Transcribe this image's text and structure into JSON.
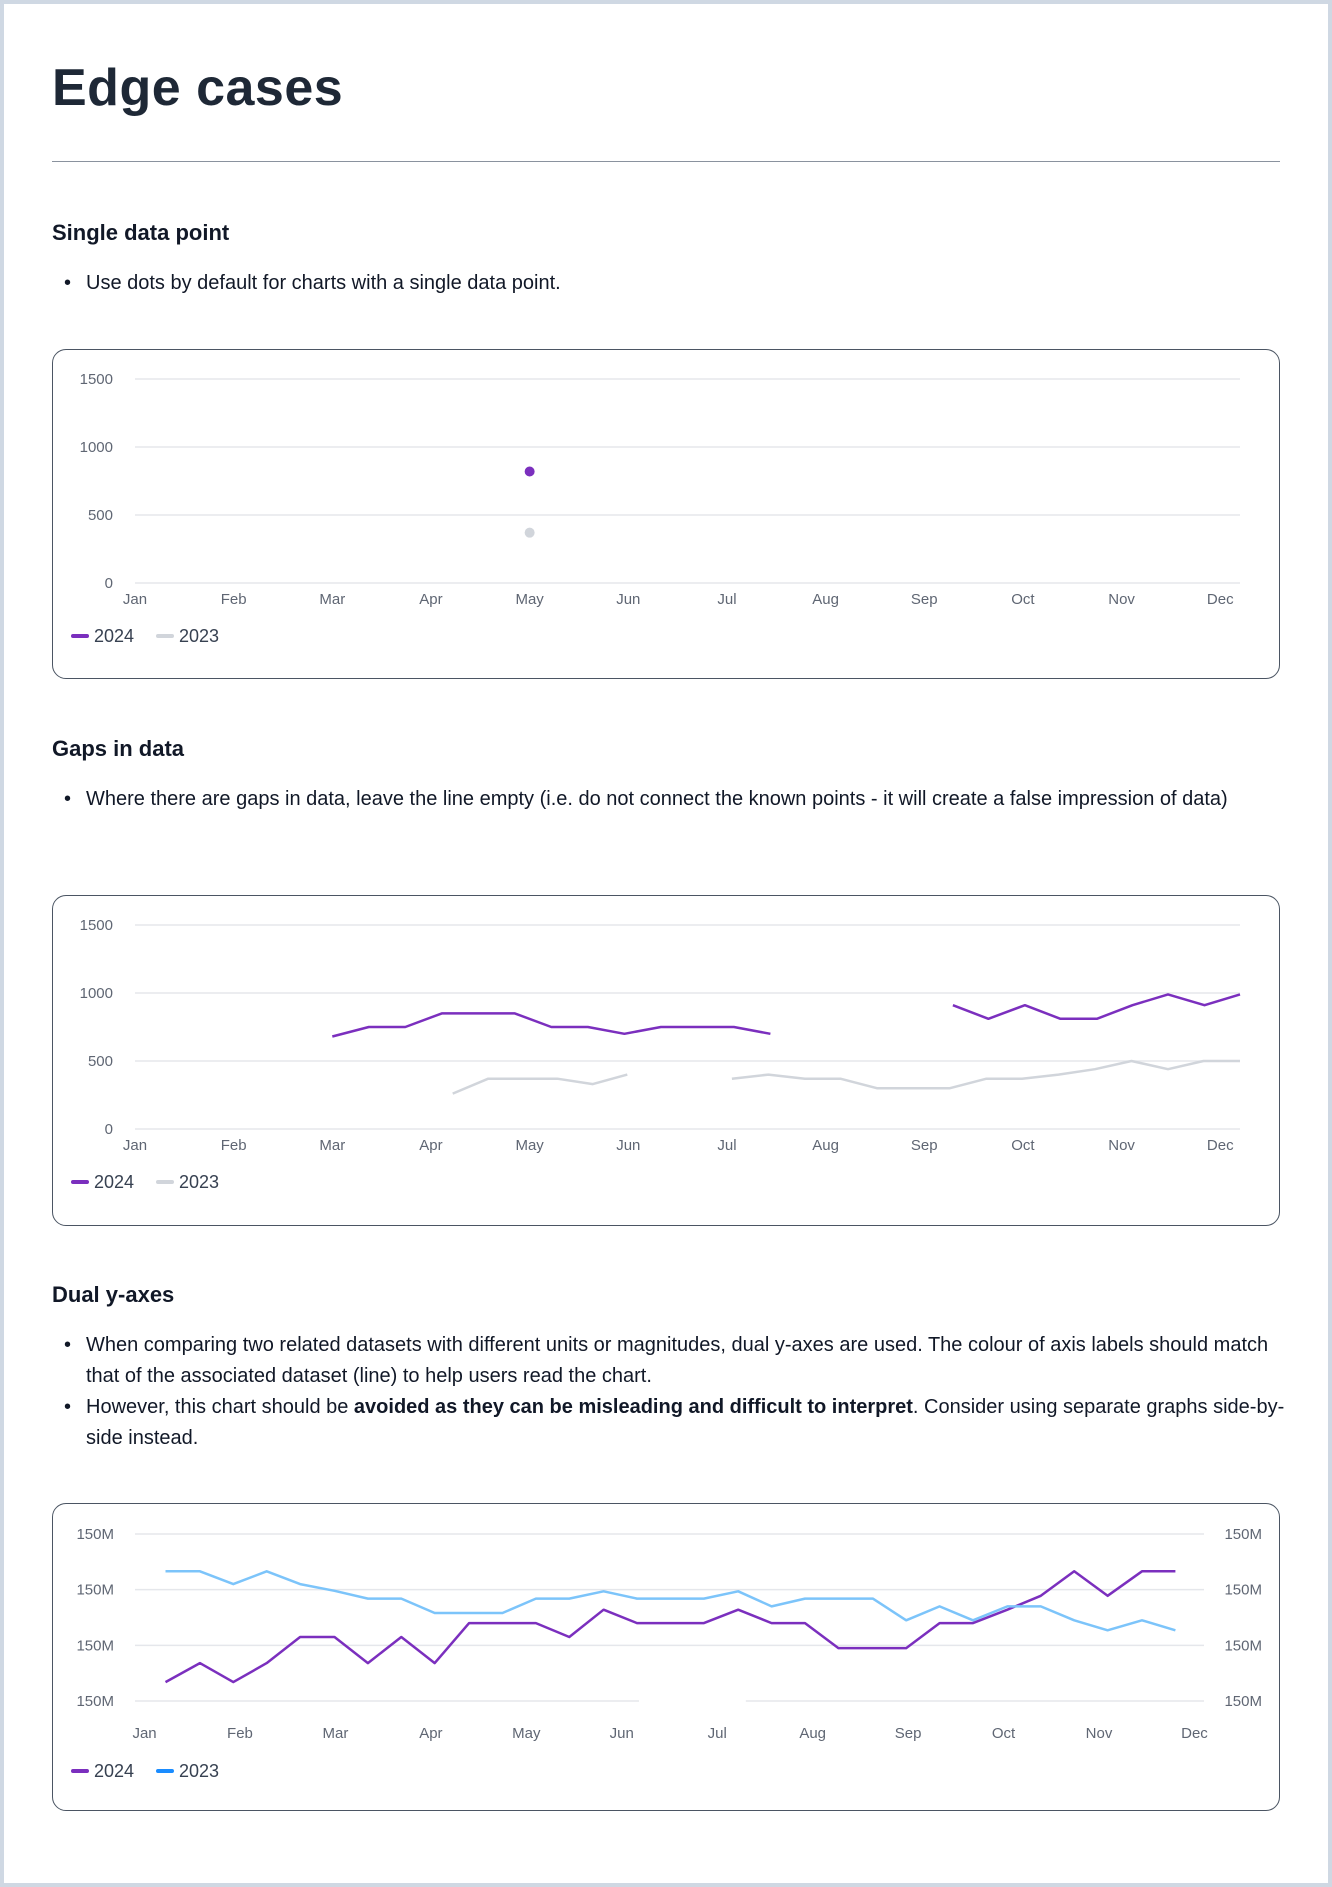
{
  "title": "Edge cases",
  "sections": {
    "single": {
      "heading": "Single data point",
      "bullets": [
        "Use dots by default for charts with a single data point."
      ]
    },
    "gaps": {
      "heading": "Gaps in data",
      "bullets": [
        "Where there are gaps in data, leave the line empty (i.e. do not connect the known points - it will create a false impression of data)"
      ]
    },
    "dual": {
      "heading": "Dual y-axes",
      "bullet1": "When comparing two related datasets with different units or magnitudes, dual y-axes are used. The colour of axis labels should match that of the associated dataset (line) to help users read the chart.",
      "bullet2_pre": "However, this chart should be ",
      "bullet2_bold": "avoided as they can be misleading and difficult to interpret",
      "bullet2_post": ". Consider using separate graphs side-by-side instead."
    }
  },
  "colors": {
    "purple": "#7b2fbe",
    "gray": "#d1d5db",
    "blue_line": "#7cc4fa",
    "blue_label": "#1a8cff",
    "blue_legend": "#1a8cff",
    "grid": "#e5e7eb"
  },
  "chart_data": [
    {
      "type": "scatter",
      "categories": [
        "Jan",
        "Feb",
        "Mar",
        "Apr",
        "May",
        "Jun",
        "Jul",
        "Aug",
        "Sep",
        "Oct",
        "Nov",
        "Dec"
      ],
      "yticks": [
        "0",
        "500",
        "1000",
        "1500"
      ],
      "ylim": [
        0,
        1500
      ],
      "xlim_months": [
        0,
        11.2
      ],
      "grid": true,
      "legend": "bottom-left",
      "series": [
        {
          "name": "2024",
          "color": "#7b2fbe",
          "segments": [
            {
              "x": [
                4
              ],
              "y": [
                820
              ]
            }
          ]
        },
        {
          "name": "2023",
          "color": "#d1d5db",
          "segments": [
            {
              "x": [
                4
              ],
              "y": [
                370
              ]
            }
          ]
        }
      ]
    },
    {
      "type": "line",
      "categories": [
        "Jan",
        "Feb",
        "Mar",
        "Apr",
        "May",
        "Jun",
        "Jul",
        "Aug",
        "Sep",
        "Oct",
        "Nov",
        "Dec"
      ],
      "yticks": [
        "0",
        "500",
        "1000",
        "1500"
      ],
      "ylim": [
        0,
        1500
      ],
      "xlim_months": [
        0,
        11.2
      ],
      "grid": true,
      "legend": "bottom-left",
      "series": [
        {
          "name": "2024",
          "color": "#7b2fbe",
          "segments": [
            {
              "x": [
                2.0,
                2.37,
                2.74,
                3.11,
                3.48,
                3.85,
                4.22,
                4.59,
                4.96,
                5.33,
                5.7,
                6.07,
                6.44
              ],
              "y": [
                680,
                750,
                750,
                850,
                850,
                850,
                750,
                750,
                700,
                750,
                750,
                750,
                700
              ]
            },
            {
              "x": [
                8.29,
                8.65,
                9.02,
                9.38,
                9.75,
                10.11,
                10.47,
                10.84,
                11.2
              ],
              "y": [
                910,
                810,
                910,
                810,
                810,
                910,
                990,
                910,
                990
              ]
            }
          ]
        },
        {
          "name": "2023",
          "color": "#d1d5db",
          "segments": [
            {
              "x": [
                3.22,
                3.58,
                3.93,
                4.28,
                4.64,
                4.99
              ],
              "y": [
                260,
                370,
                370,
                370,
                330,
                400
              ]
            },
            {
              "x": [
                6.05,
                6.42,
                6.79,
                7.15,
                7.52,
                7.89,
                8.26,
                8.63,
                8.99,
                9.36,
                9.73,
                10.1,
                10.47,
                10.83,
                11.2
              ],
              "y": [
                370,
                400,
                370,
                370,
                300,
                300,
                300,
                370,
                370,
                400,
                440,
                500,
                440,
                500,
                500
              ]
            }
          ]
        }
      ]
    },
    {
      "type": "line",
      "dual_axis": true,
      "categories": [
        "Jan",
        "Feb",
        "Mar",
        "Apr",
        "May",
        "Jun",
        "Jul",
        "Aug",
        "Sep",
        "Oct",
        "Nov",
        "Dec"
      ],
      "yticks_left": [
        "150M",
        "150M",
        "150M",
        "150M"
      ],
      "yticks_right": [
        "150M",
        "150M",
        "150M",
        "150M"
      ],
      "ylim": [
        0,
        3
      ],
      "xlim_months": [
        -0.1,
        11.1
      ],
      "grid": true,
      "legend": "bottom-left",
      "series": [
        {
          "name": "2024",
          "color": "#7b2fbe",
          "axis": "left",
          "segments": [
            {
              "x": [
                0.22,
                0.58,
                0.93,
                1.28,
                1.63,
                1.99,
                2.34,
                2.69,
                3.04,
                3.4,
                3.75,
                4.1,
                4.45,
                4.81,
                5.16,
                5.51,
                5.86,
                6.22,
                6.57,
                6.92,
                7.27,
                7.63,
                7.98,
                8.33,
                8.68,
                9.04,
                9.39,
                9.74,
                10.09,
                10.45,
                10.8
              ],
              "y": [
                0.34,
                0.68,
                0.34,
                0.68,
                1.15,
                1.15,
                0.68,
                1.15,
                0.68,
                1.4,
                1.4,
                1.4,
                1.15,
                1.64,
                1.4,
                1.4,
                1.4,
                1.64,
                1.4,
                1.4,
                0.95,
                0.95,
                0.95,
                1.4,
                1.4,
                1.64,
                1.89,
                2.33,
                1.89,
                2.33,
                2.33
              ]
            }
          ]
        },
        {
          "name": "2023",
          "color": "#7cc4fa",
          "legend_color": "#1a8cff",
          "axis": "right",
          "segments": [
            {
              "x": [
                0.22,
                0.58,
                0.93,
                1.28,
                1.63,
                1.99,
                2.34,
                2.69,
                3.04,
                3.4,
                3.75,
                4.1,
                4.45,
                4.81,
                5.16,
                5.51,
                5.86,
                6.22,
                6.57,
                6.92,
                7.27,
                7.63,
                7.98,
                8.33,
                8.68,
                9.04,
                9.39,
                9.74,
                10.09,
                10.45,
                10.8
              ],
              "y": [
                2.33,
                2.33,
                2.1,
                2.33,
                2.1,
                1.98,
                1.84,
                1.84,
                1.58,
                1.58,
                1.58,
                1.84,
                1.84,
                1.97,
                1.84,
                1.84,
                1.84,
                1.97,
                1.7,
                1.84,
                1.84,
                1.84,
                1.45,
                1.7,
                1.45,
                1.7,
                1.7,
                1.45,
                1.27,
                1.45,
                1.27
              ]
            }
          ]
        }
      ]
    }
  ]
}
